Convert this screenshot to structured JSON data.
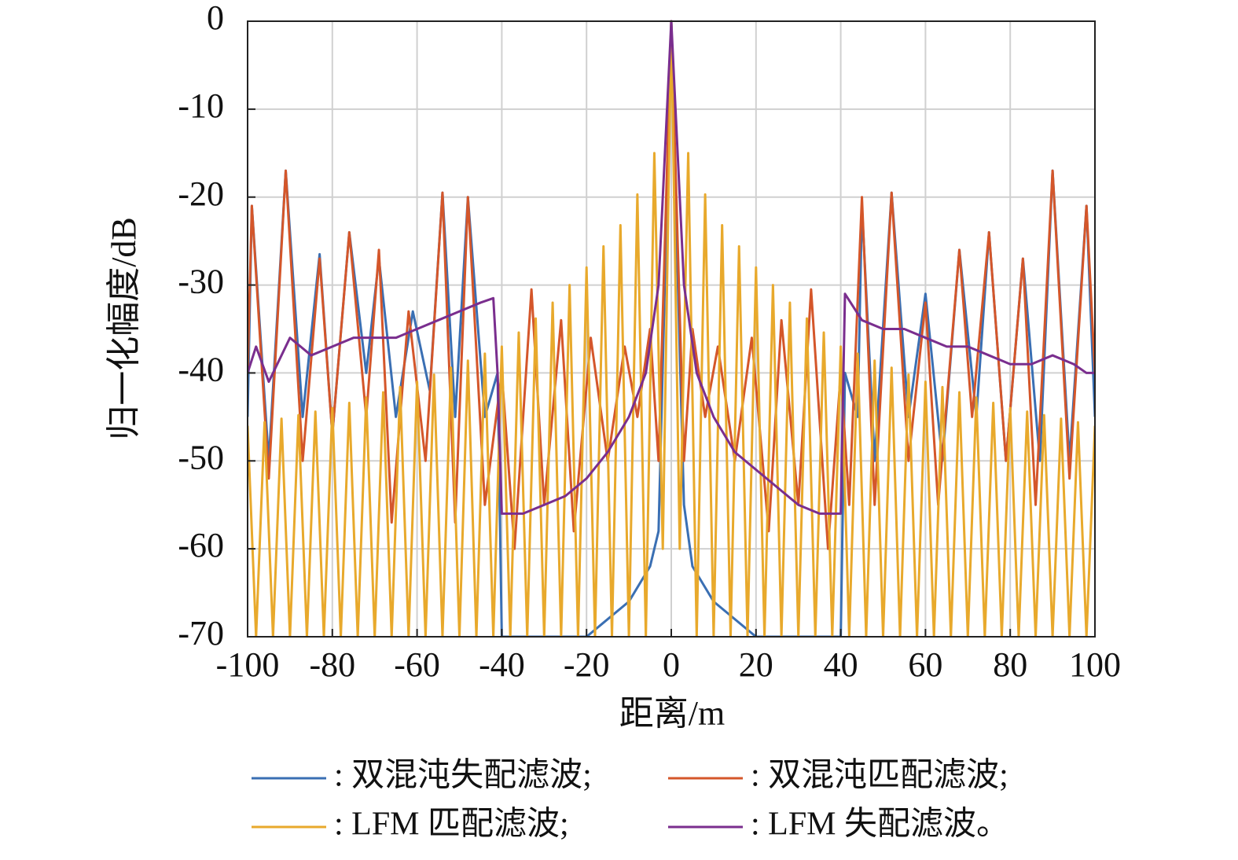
{
  "chart_data": {
    "type": "line",
    "xlabel": "距离/m",
    "ylabel": "归一化幅度/dB",
    "xlim": [
      -100,
      100
    ],
    "ylim": [
      -70,
      0
    ],
    "xticks": [
      -100,
      -80,
      -60,
      -40,
      -20,
      0,
      20,
      40,
      60,
      80,
      100
    ],
    "yticks": [
      0,
      -10,
      -20,
      -30,
      -40,
      -50,
      -60,
      -70
    ],
    "grid": true,
    "series": [
      {
        "name": ": 双混沌失配滤波;",
        "color": "#3a6fb3",
        "x": [
          -100,
          -99,
          -95,
          -91,
          -87,
          -83,
          -80,
          -76,
          -72,
          -69,
          -65,
          -61,
          -57,
          -54,
          -51,
          -48,
          -44,
          -41,
          -40,
          -20,
          -10,
          -5,
          -3,
          -1,
          0,
          1,
          3,
          5,
          10,
          20,
          40,
          41,
          44,
          45,
          48,
          52,
          56,
          60,
          64,
          68,
          72,
          75,
          79,
          83,
          87,
          90,
          94,
          98,
          100
        ],
        "values": [
          -45,
          -21,
          -50,
          -17,
          -45,
          -26.5,
          -47,
          -24,
          -40,
          -27,
          -45,
          -33,
          -42,
          -19.5,
          -45,
          -20,
          -45,
          -40,
          -70,
          -70,
          -66,
          -62,
          -58,
          -20,
          0,
          -20,
          -55,
          -62,
          -66,
          -70,
          -70,
          -40,
          -45,
          -21,
          -50,
          -19.5,
          -45,
          -31,
          -50,
          -26,
          -45,
          -24,
          -50,
          -27,
          -50,
          -17,
          -50,
          -21,
          -45
        ]
      },
      {
        "name": ": 双混沌匹配滤波;",
        "color": "#d4562a",
        "x": [
          -100,
          -99,
          -95,
          -91,
          -87,
          -83,
          -80,
          -76,
          -72,
          -69,
          -66,
          -62,
          -58,
          -54,
          -51,
          -48,
          -44,
          -40,
          -37,
          -33,
          -30,
          -26,
          -23,
          -19,
          -15,
          -11,
          -8,
          -5,
          -3,
          0,
          3,
          5,
          8,
          11,
          15,
          19,
          23,
          26,
          30,
          33,
          37,
          40,
          42,
          45,
          48,
          52,
          56,
          60,
          63,
          68,
          71,
          75,
          79,
          83,
          86,
          90,
          94,
          98,
          100
        ],
        "values": [
          -40,
          -21,
          -52,
          -17,
          -50,
          -27,
          -47,
          -24,
          -45,
          -26,
          -57,
          -33,
          -50,
          -19.5,
          -57,
          -20,
          -55,
          -40,
          -60,
          -30.5,
          -55,
          -34,
          -58,
          -36,
          -50,
          -37,
          -45,
          -35,
          -50,
          0,
          -50,
          -35,
          -45,
          -37,
          -50,
          -36,
          -58,
          -34,
          -55,
          -30.5,
          -60,
          -40,
          -55,
          -20,
          -55,
          -19.5,
          -50,
          -32,
          -55,
          -26,
          -45,
          -24,
          -50,
          -27,
          -55,
          -17,
          -52,
          -21,
          -40
        ]
      },
      {
        "name": ": LFM 匹配滤波;",
        "color": "#e8a92c",
        "x": [
          -100,
          -98,
          -96,
          -94,
          -92,
          -90,
          -88,
          -86,
          -84,
          -82,
          -80,
          -78,
          -76,
          -74,
          -72,
          -70,
          -68,
          -66,
          -64,
          -62,
          -60,
          -58,
          -56,
          -54,
          -52,
          -50,
          -48,
          -46,
          -44,
          -42,
          -40,
          -38,
          -36,
          -34,
          -32,
          -30,
          -28,
          -26,
          -24,
          -22,
          -20,
          -18,
          -16,
          -14,
          -12,
          -10,
          -8,
          -6,
          -4,
          -2,
          0,
          2,
          4,
          6,
          8,
          10,
          12,
          14,
          16,
          18,
          20,
          22,
          24,
          26,
          28,
          30,
          32,
          34,
          36,
          38,
          40,
          42,
          44,
          46,
          48,
          50,
          52,
          54,
          56,
          58,
          60,
          62,
          64,
          66,
          68,
          70,
          72,
          74,
          76,
          78,
          80,
          82,
          84,
          86,
          88,
          90,
          92,
          94,
          96,
          98,
          100
        ],
        "values": [
          -46,
          -70,
          -45.6,
          -70,
          -45.2,
          -70,
          -44.8,
          -70,
          -44.4,
          -70,
          -44,
          -70,
          -43.4,
          -70,
          -42.8,
          -70,
          -42.2,
          -70,
          -41.6,
          -70,
          -41,
          -70,
          -40.2,
          -70,
          -39.4,
          -70,
          -38.6,
          -70,
          -37.8,
          -70,
          -37,
          -70,
          -35.4,
          -70,
          -33.8,
          -70,
          -32,
          -70,
          -30,
          -70,
          -28,
          -70,
          -25.6,
          -70,
          -23.2,
          -70,
          -19.7,
          -70,
          -15,
          -60,
          0,
          -60,
          -15,
          -70,
          -19.7,
          -70,
          -23.2,
          -70,
          -25.6,
          -70,
          -28,
          -70,
          -30,
          -70,
          -32,
          -70,
          -33.8,
          -70,
          -35.4,
          -70,
          -37,
          -70,
          -37.8,
          -70,
          -38.6,
          -70,
          -39.4,
          -70,
          -40.2,
          -70,
          -41,
          -70,
          -41.6,
          -70,
          -42.2,
          -70,
          -42.8,
          -70,
          -43.4,
          -70,
          -44,
          -70,
          -44.4,
          -70,
          -44.8,
          -70,
          -45.2,
          -70,
          -45.6,
          -70,
          -46
        ]
      },
      {
        "name": ": LFM 失配滤波。",
        "color": "#7a2e8e",
        "x": [
          -100,
          -98,
          -95,
          -90,
          -85,
          -80,
          -75,
          -70,
          -65,
          -60,
          -55,
          -50,
          -45,
          -42,
          -41,
          -40,
          -35,
          -30,
          -25,
          -20,
          -15,
          -10,
          -6,
          -3,
          0,
          3,
          6,
          10,
          15,
          20,
          25,
          30,
          35,
          40,
          41,
          45,
          50,
          55,
          60,
          65,
          70,
          75,
          80,
          85,
          90,
          95,
          98,
          100
        ],
        "values": [
          -40,
          -37,
          -41,
          -36,
          -38,
          -37,
          -36,
          -36,
          -36,
          -35,
          -34,
          -33,
          -32,
          -31.5,
          -40,
          -56,
          -56,
          -55,
          -54,
          -52,
          -49,
          -45,
          -40,
          -30,
          0,
          -30,
          -40,
          -45,
          -49,
          -51,
          -53,
          -55,
          -56,
          -56,
          -31,
          -34,
          -35,
          -35,
          -36,
          -37,
          -37,
          -38,
          -39,
          -39,
          -38,
          -39,
          -40,
          -40
        ]
      }
    ]
  }
}
